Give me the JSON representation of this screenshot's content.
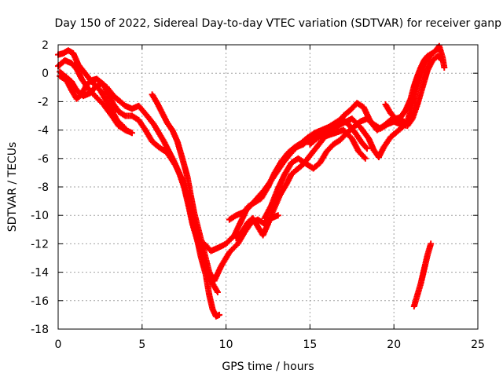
{
  "chart_data": {
    "type": "scatter",
    "title": "Day 150 of 2022, Sidereal Day-to-day VTEC variation (SDTVAR) for receiver ganp",
    "xlabel": "GPS time / hours",
    "ylabel": "SDTVAR / TECUs",
    "xlim": [
      0,
      25
    ],
    "ylim": [
      -18,
      2
    ],
    "xticks": [
      0,
      5,
      10,
      15,
      20,
      25
    ],
    "yticks": [
      -18,
      -16,
      -14,
      -12,
      -10,
      -8,
      -6,
      -4,
      -2,
      0,
      2
    ],
    "grid": true,
    "marker": "+",
    "color": "#ff0000",
    "series": [
      {
        "points": [
          [
            0.0,
            1.3
          ],
          [
            0.3,
            1.4
          ],
          [
            0.6,
            1.6
          ],
          [
            0.9,
            1.4
          ],
          [
            1.2,
            0.6
          ],
          [
            1.6,
            0.0
          ],
          [
            2.0,
            -0.6
          ],
          [
            2.5,
            -1.2
          ],
          [
            3.0,
            -2.2
          ],
          [
            3.5,
            -3.3
          ],
          [
            4.0,
            -3.9
          ]
        ]
      },
      {
        "points": [
          [
            0.0,
            0.5
          ],
          [
            0.4,
            0.9
          ],
          [
            0.8,
            0.7
          ],
          [
            1.1,
            0.3
          ],
          [
            1.4,
            -0.4
          ],
          [
            1.8,
            -1.1
          ],
          [
            2.2,
            -1.6
          ],
          [
            2.7,
            -2.2
          ],
          [
            3.2,
            -3.0
          ],
          [
            3.6,
            -3.7
          ],
          [
            4.0,
            -4.0
          ],
          [
            4.4,
            -4.2
          ]
        ]
      },
      {
        "points": [
          [
            0.1,
            0.1
          ],
          [
            0.4,
            -0.2
          ],
          [
            0.8,
            -0.6
          ],
          [
            1.1,
            -1.2
          ],
          [
            1.5,
            -1.6
          ],
          [
            1.9,
            -1.4
          ],
          [
            2.2,
            -1.0
          ],
          [
            2.6,
            -0.7
          ],
          [
            2.9,
            -1.0
          ],
          [
            3.3,
            -1.6
          ],
          [
            3.7,
            -2.0
          ],
          [
            4.0,
            -2.3
          ],
          [
            4.4,
            -2.5
          ],
          [
            4.8,
            -2.3
          ],
          [
            5.3,
            -3.0
          ],
          [
            5.7,
            -3.6
          ],
          [
            6.0,
            -4.2
          ],
          [
            6.3,
            -4.8
          ],
          [
            6.6,
            -5.5
          ],
          [
            6.9,
            -6.2
          ],
          [
            7.2,
            -7.0
          ],
          [
            7.5,
            -8.0
          ],
          [
            7.8,
            -9.5
          ],
          [
            8.0,
            -10.6
          ],
          [
            8.3,
            -11.8
          ],
          [
            8.6,
            -12.9
          ],
          [
            8.9,
            -14.0
          ],
          [
            9.2,
            -14.8
          ],
          [
            9.5,
            -15.4
          ]
        ]
      },
      {
        "points": [
          [
            0.1,
            -0.2
          ],
          [
            0.5,
            -0.5
          ],
          [
            0.8,
            -1.2
          ],
          [
            1.1,
            -1.8
          ],
          [
            1.4,
            -1.5
          ],
          [
            1.7,
            -0.8
          ],
          [
            2.0,
            -0.5
          ],
          [
            2.3,
            -0.4
          ],
          [
            2.7,
            -0.8
          ],
          [
            3.0,
            -1.5
          ],
          [
            3.3,
            -2.2
          ],
          [
            3.6,
            -2.7
          ],
          [
            4.0,
            -3.0
          ],
          [
            4.4,
            -3.0
          ],
          [
            4.8,
            -3.3
          ],
          [
            5.2,
            -4.0
          ],
          [
            5.6,
            -4.8
          ],
          [
            6.0,
            -5.2
          ],
          [
            6.5,
            -5.6
          ],
          [
            7.0,
            -6.5
          ],
          [
            7.4,
            -7.5
          ],
          [
            7.7,
            -8.8
          ],
          [
            8.0,
            -10.2
          ],
          [
            8.3,
            -11.8
          ],
          [
            8.5,
            -12.9
          ],
          [
            8.8,
            -14.2
          ],
          [
            9.0,
            -15.6
          ],
          [
            9.2,
            -16.6
          ],
          [
            9.4,
            -17.1
          ],
          [
            9.6,
            -17.0
          ]
        ]
      },
      {
        "points": [
          [
            5.6,
            -1.5
          ],
          [
            5.9,
            -2.1
          ],
          [
            6.2,
            -2.8
          ],
          [
            6.5,
            -3.5
          ],
          [
            6.8,
            -4.0
          ],
          [
            7.1,
            -4.8
          ],
          [
            7.4,
            -6.0
          ],
          [
            7.7,
            -7.3
          ],
          [
            7.9,
            -8.6
          ],
          [
            8.1,
            -9.8
          ],
          [
            8.4,
            -11.2
          ],
          [
            8.7,
            -12.6
          ],
          [
            9.0,
            -14.0
          ],
          [
            9.3,
            -14.6
          ],
          [
            9.7,
            -13.6
          ],
          [
            10.2,
            -12.6
          ],
          [
            10.7,
            -12.0
          ],
          [
            11.1,
            -11.2
          ],
          [
            11.5,
            -10.5
          ],
          [
            11.9,
            -10.3
          ],
          [
            12.3,
            -10.6
          ],
          [
            12.7,
            -10.2
          ],
          [
            13.1,
            -10.0
          ]
        ]
      },
      {
        "points": [
          [
            8.7,
            -12.0
          ],
          [
            9.1,
            -12.5
          ],
          [
            9.5,
            -12.3
          ],
          [
            10.0,
            -12.0
          ],
          [
            10.5,
            -11.4
          ],
          [
            10.9,
            -10.4
          ],
          [
            11.3,
            -9.4
          ],
          [
            11.7,
            -9.1
          ],
          [
            12.1,
            -8.8
          ],
          [
            12.5,
            -8.0
          ],
          [
            12.9,
            -7.0
          ],
          [
            13.3,
            -6.2
          ],
          [
            13.7,
            -5.6
          ],
          [
            14.1,
            -5.2
          ],
          [
            14.5,
            -4.9
          ],
          [
            14.9,
            -4.5
          ],
          [
            15.3,
            -4.2
          ],
          [
            15.7,
            -4.0
          ],
          [
            16.1,
            -3.8
          ],
          [
            16.5,
            -3.5
          ],
          [
            16.9,
            -3.2
          ],
          [
            17.3,
            -3.6
          ],
          [
            17.7,
            -4.2
          ],
          [
            18.1,
            -4.9
          ],
          [
            18.4,
            -5.3
          ]
        ]
      },
      {
        "points": [
          [
            10.2,
            -10.3
          ],
          [
            10.6,
            -10.0
          ],
          [
            11.0,
            -9.8
          ],
          [
            11.4,
            -9.4
          ],
          [
            11.7,
            -9.0
          ],
          [
            12.0,
            -8.6
          ],
          [
            12.3,
            -8.2
          ],
          [
            12.6,
            -7.7
          ],
          [
            13.0,
            -7.0
          ],
          [
            13.4,
            -6.3
          ],
          [
            13.8,
            -5.7
          ],
          [
            14.2,
            -5.2
          ],
          [
            14.6,
            -5.0
          ],
          [
            15.0,
            -4.6
          ],
          [
            15.5,
            -4.4
          ],
          [
            16.0,
            -4.4
          ],
          [
            16.5,
            -4.2
          ],
          [
            17.0,
            -4.0
          ],
          [
            17.5,
            -4.6
          ],
          [
            17.9,
            -5.5
          ],
          [
            18.3,
            -6.0
          ]
        ]
      },
      {
        "points": [
          [
            10.6,
            -11.6
          ],
          [
            11.0,
            -11.1
          ],
          [
            11.3,
            -10.5
          ],
          [
            11.6,
            -10.2
          ],
          [
            11.9,
            -10.8
          ],
          [
            12.2,
            -11.4
          ],
          [
            12.5,
            -10.6
          ],
          [
            12.8,
            -9.7
          ],
          [
            13.2,
            -8.6
          ],
          [
            13.6,
            -7.8
          ],
          [
            13.9,
            -7.1
          ],
          [
            14.2,
            -6.8
          ],
          [
            14.6,
            -6.4
          ],
          [
            15.0,
            -5.8
          ],
          [
            15.4,
            -5.2
          ],
          [
            15.8,
            -4.6
          ],
          [
            16.2,
            -4.1
          ],
          [
            16.6,
            -3.6
          ],
          [
            17.0,
            -3.0
          ],
          [
            17.4,
            -2.6
          ],
          [
            17.8,
            -2.1
          ],
          [
            18.2,
            -2.4
          ],
          [
            18.6,
            -3.4
          ],
          [
            19.0,
            -4.0
          ],
          [
            19.4,
            -3.7
          ],
          [
            19.8,
            -3.3
          ],
          [
            20.2,
            -3.2
          ],
          [
            20.6,
            -3.4
          ]
        ]
      },
      {
        "points": [
          [
            12.3,
            -10.2
          ],
          [
            12.7,
            -9.3
          ],
          [
            13.1,
            -8.1
          ],
          [
            13.5,
            -7.1
          ],
          [
            13.9,
            -6.3
          ],
          [
            14.3,
            -6.0
          ],
          [
            14.8,
            -6.4
          ],
          [
            15.2,
            -6.7
          ],
          [
            15.6,
            -6.3
          ],
          [
            16.0,
            -5.5
          ],
          [
            16.4,
            -5.0
          ],
          [
            16.8,
            -4.7
          ],
          [
            17.2,
            -4.2
          ],
          [
            17.6,
            -3.8
          ],
          [
            18.0,
            -3.4
          ],
          [
            18.4,
            -3.2
          ],
          [
            18.8,
            -3.6
          ],
          [
            19.2,
            -3.9
          ],
          [
            19.6,
            -3.6
          ],
          [
            20.0,
            -3.4
          ],
          [
            20.4,
            -3.6
          ],
          [
            20.8,
            -3.7
          ],
          [
            21.1,
            -3.2
          ],
          [
            21.4,
            -2.2
          ],
          [
            21.7,
            -1.0
          ],
          [
            22.0,
            0.2
          ],
          [
            22.3,
            0.9
          ],
          [
            22.6,
            1.2
          ],
          [
            22.8,
            1.0
          ]
        ]
      },
      {
        "points": [
          [
            15.0,
            -5.0
          ],
          [
            15.5,
            -4.5
          ],
          [
            16.0,
            -4.0
          ],
          [
            16.5,
            -3.8
          ],
          [
            17.0,
            -3.5
          ],
          [
            17.5,
            -3.2
          ],
          [
            18.0,
            -3.8
          ],
          [
            18.5,
            -4.6
          ],
          [
            18.8,
            -5.4
          ],
          [
            19.1,
            -5.9
          ],
          [
            19.4,
            -5.2
          ],
          [
            19.8,
            -4.5
          ],
          [
            20.2,
            -4.1
          ],
          [
            20.5,
            -3.8
          ],
          [
            20.8,
            -3.4
          ],
          [
            21.0,
            -2.6
          ],
          [
            21.3,
            -1.3
          ],
          [
            21.6,
            -0.2
          ],
          [
            21.9,
            0.8
          ],
          [
            22.2,
            1.3
          ],
          [
            22.5,
            1.6
          ],
          [
            22.7,
            1.9
          ],
          [
            22.9,
            1.1
          ],
          [
            23.0,
            0.4
          ]
        ]
      },
      {
        "points": [
          [
            19.5,
            -2.2
          ],
          [
            19.8,
            -2.8
          ],
          [
            20.1,
            -3.2
          ],
          [
            20.4,
            -3.1
          ],
          [
            20.7,
            -2.6
          ],
          [
            21.0,
            -1.8
          ],
          [
            21.2,
            -0.9
          ],
          [
            21.4,
            -0.2
          ],
          [
            21.6,
            0.4
          ],
          [
            21.8,
            0.9
          ],
          [
            22.0,
            1.2
          ],
          [
            22.3,
            1.4
          ]
        ]
      },
      {
        "points": [
          [
            21.2,
            -16.4
          ],
          [
            21.4,
            -15.6
          ],
          [
            21.6,
            -14.8
          ],
          [
            21.8,
            -13.8
          ],
          [
            22.0,
            -12.8
          ],
          [
            22.2,
            -12.0
          ]
        ]
      }
    ]
  }
}
